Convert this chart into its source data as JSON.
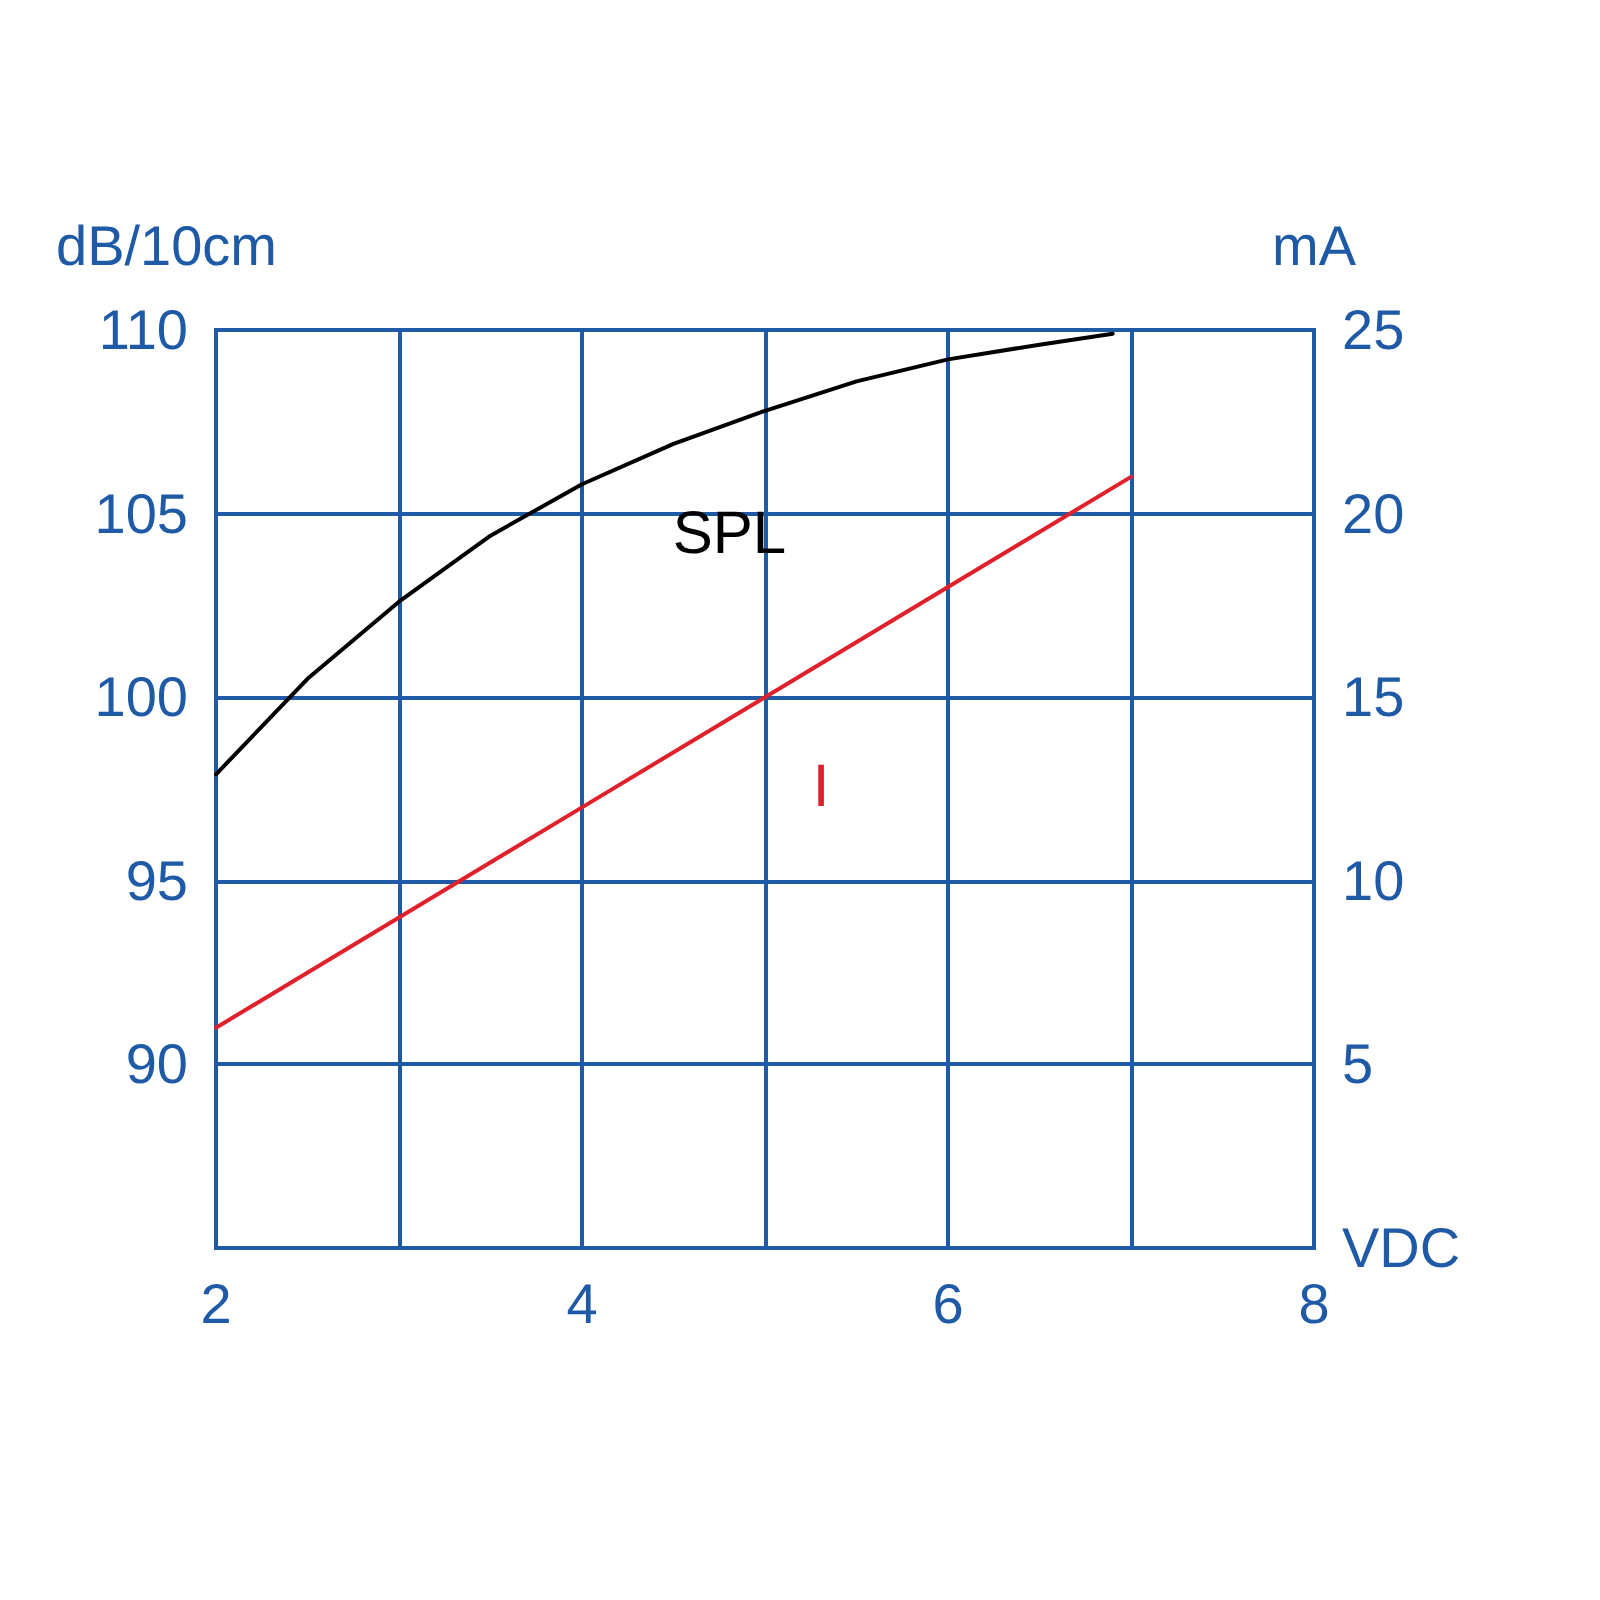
{
  "chart_data": {
    "type": "line",
    "xlabel": "VDC",
    "ylabel": "dB/10cm",
    "y2label": "mA",
    "xlim": [
      2,
      8
    ],
    "xticks": [
      2,
      {
        "value": 3,
        "label": null
      },
      4,
      {
        "value": 5,
        "label": null
      },
      6,
      {
        "value": 7,
        "label": null
      },
      8
    ],
    "ylim": [
      85,
      110
    ],
    "yticks": [
      90,
      95,
      100,
      105,
      110
    ],
    "y2lim": [
      0,
      25
    ],
    "y2ticks": [
      5,
      10,
      15,
      20,
      25
    ],
    "grid": true,
    "legend": false,
    "marker": "none",
    "line_style": "solid",
    "series": [
      {
        "name": "SPL",
        "color": "#000000",
        "x": [
          2,
          2.5,
          3,
          3.5,
          4,
          4.5,
          5,
          5.5,
          6,
          6.5,
          6.9
        ],
        "values": [
          97.9,
          100.5,
          102.6,
          104.4,
          105.8,
          106.9,
          107.8,
          108.6,
          109.2,
          109.6,
          109.9
        ]
      },
      {
        "name": "I",
        "color": "#e0202a",
        "axis": "y2",
        "x": [
          2,
          3,
          4,
          5,
          6,
          7
        ],
        "values": [
          6,
          9,
          12,
          15,
          18,
          21
        ]
      }
    ]
  }
}
